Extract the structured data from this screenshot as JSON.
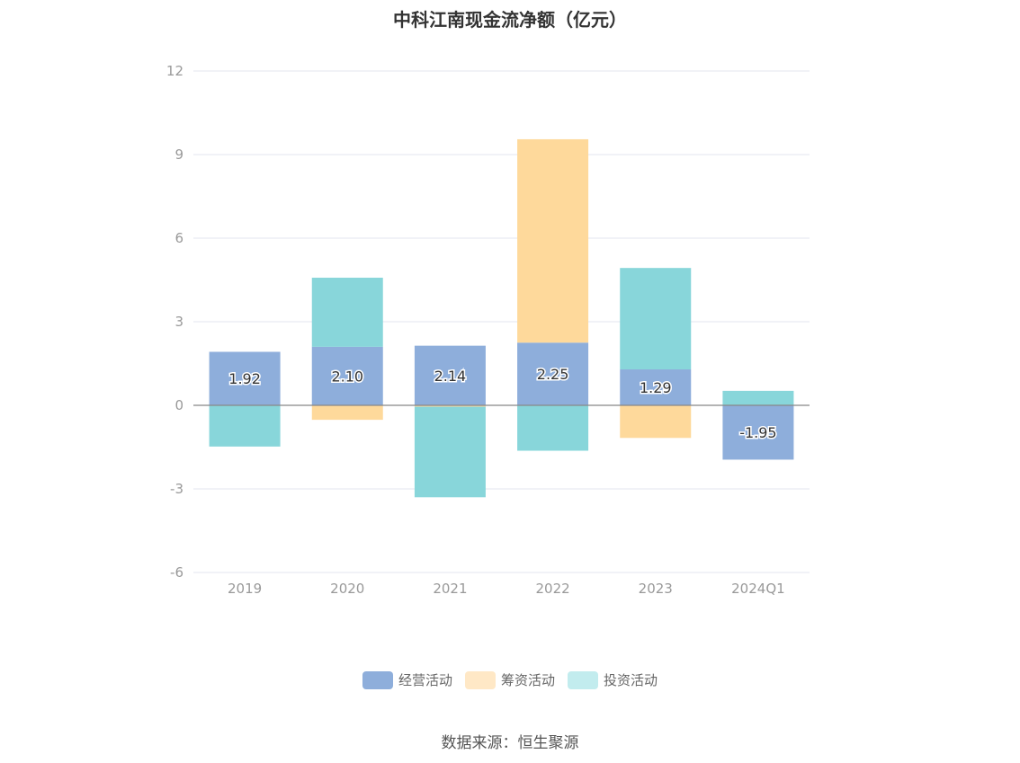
{
  "chart_data": {
    "type": "bar",
    "stacked": true,
    "title": "中科江南现金流净额（亿元）",
    "categories": [
      "2019",
      "2020",
      "2021",
      "2022",
      "2023",
      "2024Q1"
    ],
    "series": [
      {
        "name": "经营活动",
        "color": "#8eaedb",
        "values": [
          1.92,
          2.1,
          2.14,
          2.25,
          1.29,
          -1.95
        ],
        "labels": [
          "1.92",
          "2.10",
          "2.14",
          "2.25",
          "1.29",
          "-1.95"
        ]
      },
      {
        "name": "筹资活动",
        "color": "#fed99b",
        "values": [
          0.0,
          -0.52,
          -0.05,
          7.3,
          -1.17,
          0.0
        ]
      },
      {
        "name": "投资活动",
        "color": "#88d6da",
        "values": [
          -1.48,
          2.48,
          -3.25,
          -1.63,
          3.64,
          0.52
        ]
      }
    ],
    "y_ticks": [
      "12",
      "9",
      "6",
      "3",
      "0",
      "-3",
      "-6"
    ],
    "ylim": [
      -6,
      12
    ],
    "grid": true,
    "legend_position": "bottom"
  },
  "legend_colors": {
    "operating": "#8eaedb",
    "financing": "#ffe8c6",
    "investing": "#c2ecee"
  },
  "source": "数据来源：恒生聚源"
}
